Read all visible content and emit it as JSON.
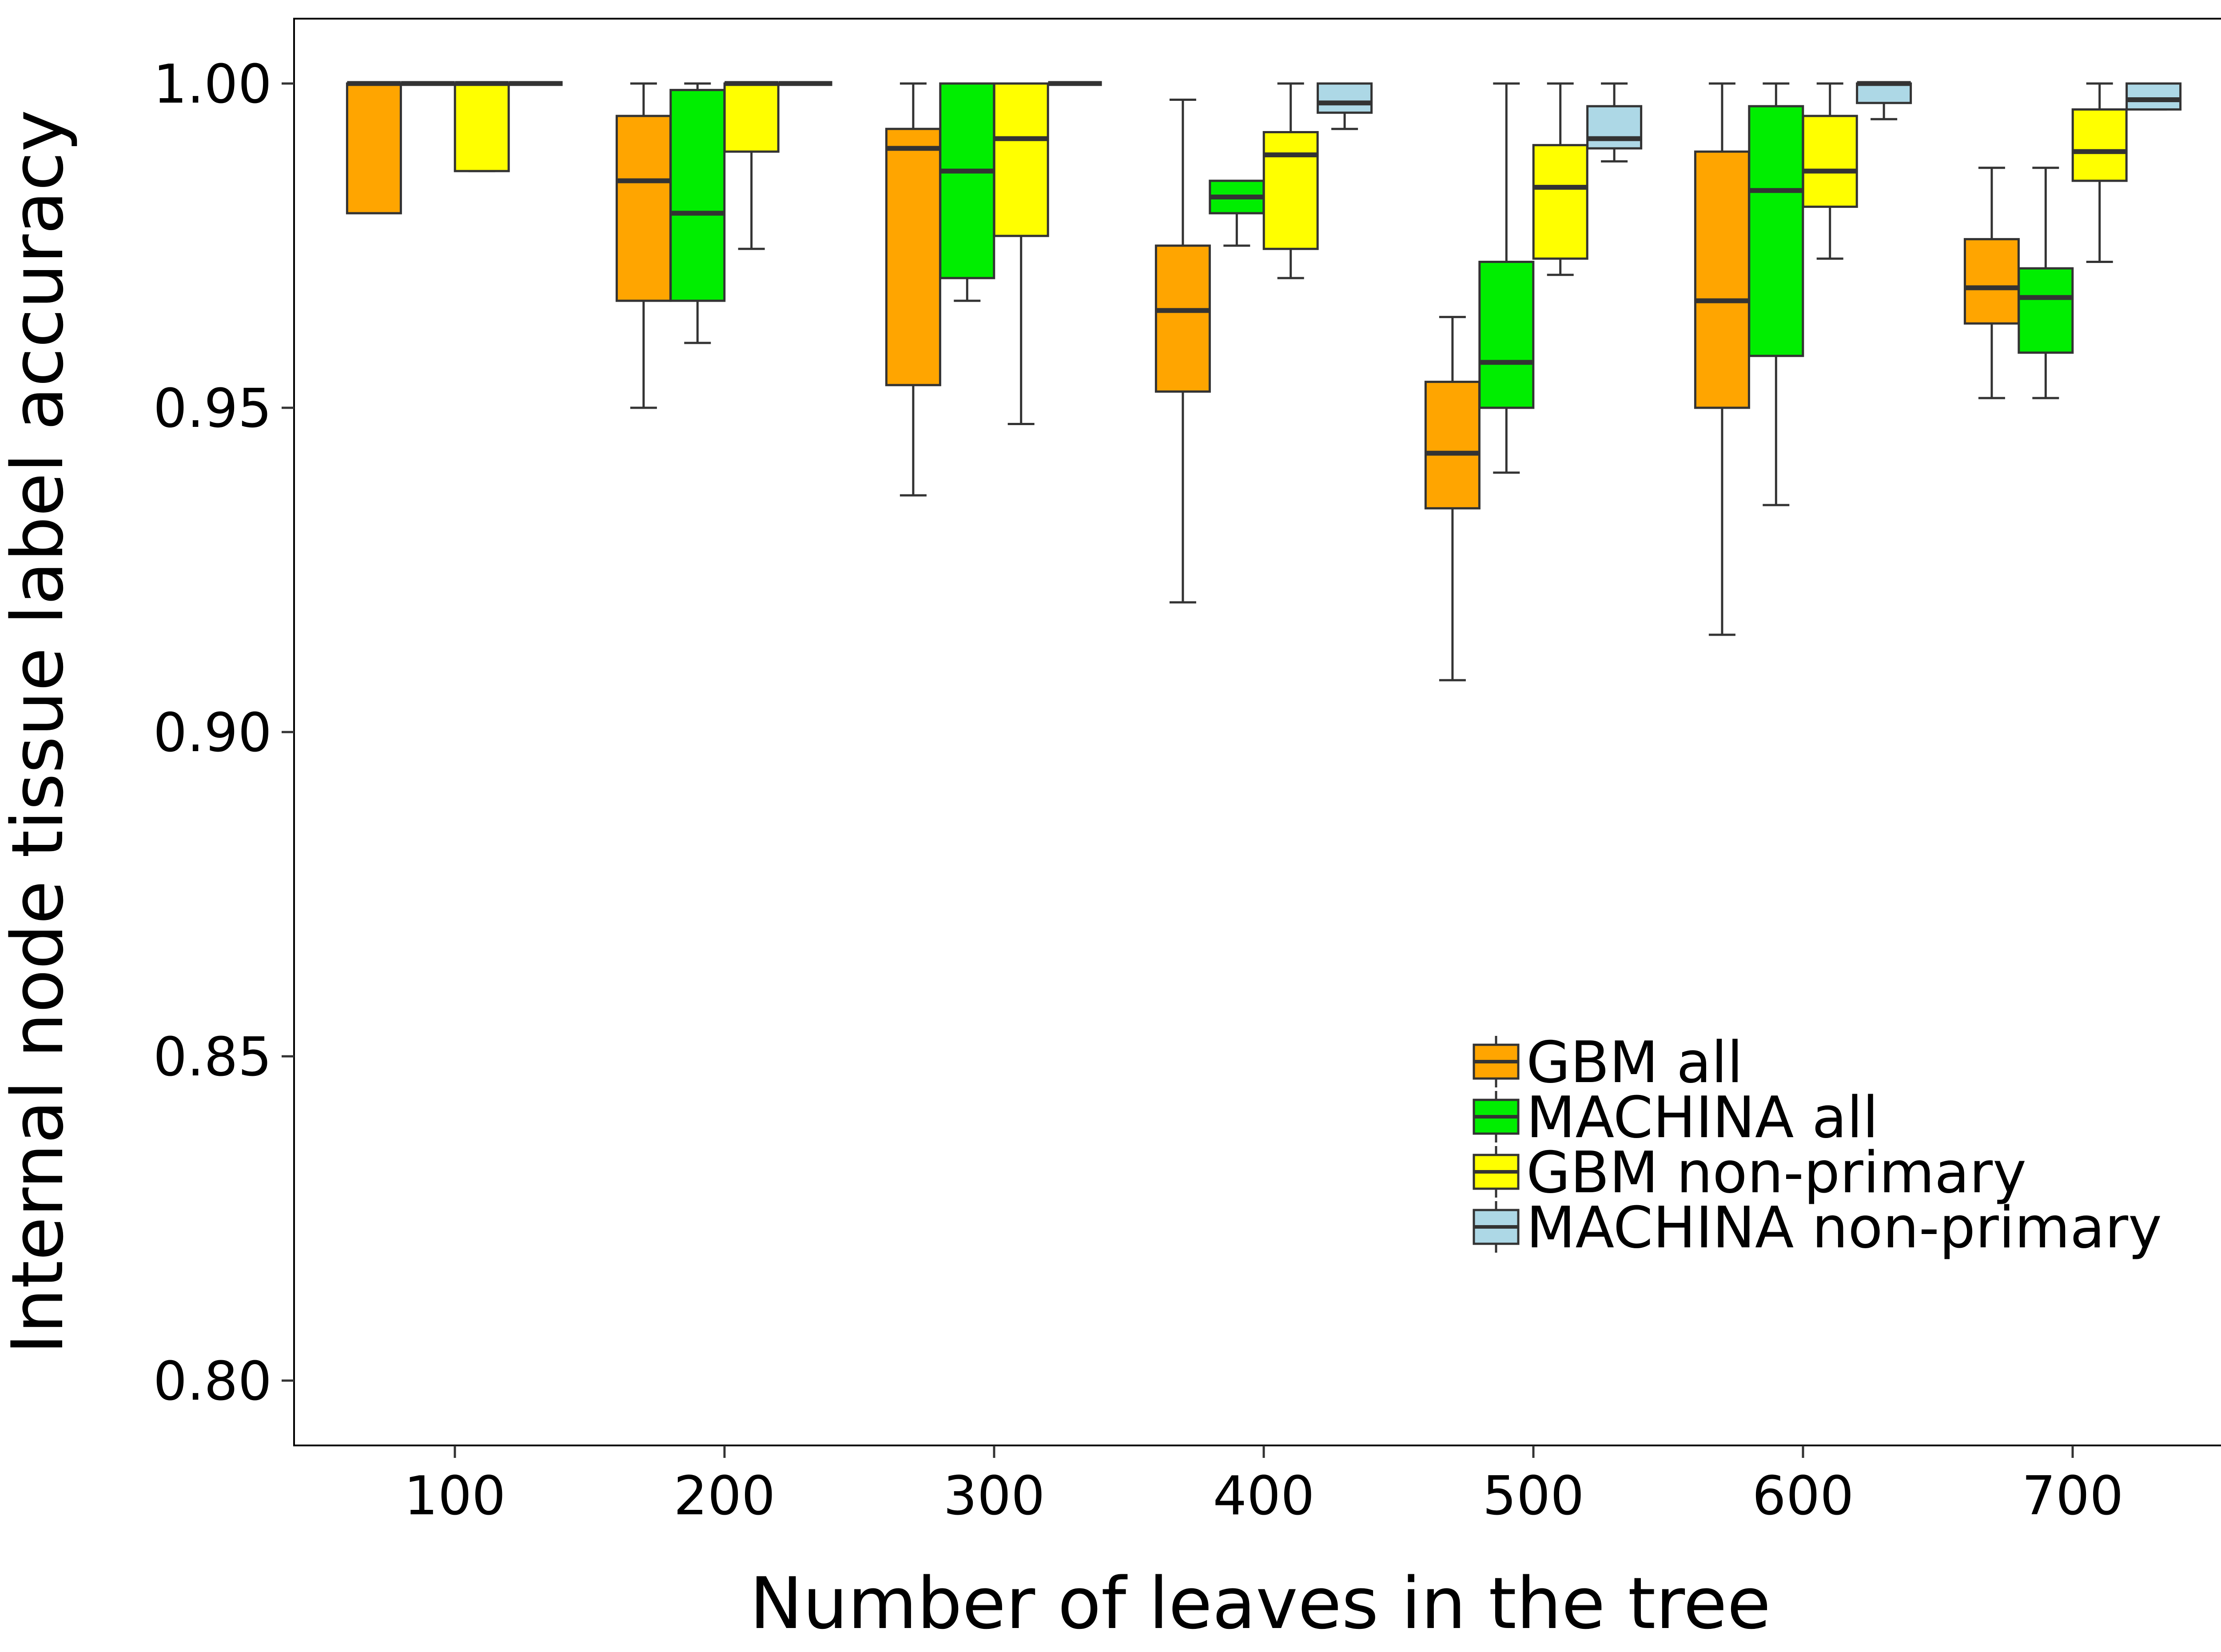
{
  "chart_data": {
    "type": "boxplot",
    "title": "",
    "xlabel": "Number of leaves in the tree",
    "ylabel": "Internal node tissue label accuracy",
    "ylim": [
      0.79,
      1.01
    ],
    "yticks": [
      0.8,
      0.85,
      0.9,
      0.95,
      1.0
    ],
    "ytick_labels": [
      "0.80",
      "0.85",
      "0.90",
      "0.95",
      "1.00"
    ],
    "categories": [
      "100",
      "200",
      "300",
      "400",
      "500",
      "600",
      "700"
    ],
    "grid": false,
    "legend_position": "bottom-right",
    "series": [
      {
        "name": "GBM all",
        "color": "#FFA500",
        "boxes": [
          {
            "whisker_low": 0.98,
            "q1": 0.98,
            "median": 1.0,
            "q3": 1.0,
            "whisker_high": 1.0
          },
          {
            "whisker_low": 0.95,
            "q1": 0.9665,
            "median": 0.985,
            "q3": 0.995,
            "whisker_high": 1.0
          },
          {
            "whisker_low": 0.9365,
            "q1": 0.9535,
            "median": 0.99,
            "q3": 0.993,
            "whisker_high": 1.0
          },
          {
            "whisker_low": 0.92,
            "q1": 0.9525,
            "median": 0.965,
            "q3": 0.975,
            "whisker_high": 0.9975
          },
          {
            "whisker_low": 0.908,
            "q1": 0.9345,
            "median": 0.943,
            "q3": 0.954,
            "whisker_high": 0.964
          },
          {
            "whisker_low": 0.915,
            "q1": 0.95,
            "median": 0.9665,
            "q3": 0.9895,
            "whisker_high": 1.0
          },
          {
            "whisker_low": 0.9515,
            "q1": 0.963,
            "median": 0.9685,
            "q3": 0.976,
            "whisker_high": 0.987
          }
        ]
      },
      {
        "name": "MACHINA all",
        "color": "#00EE00",
        "boxes": [
          {
            "whisker_low": 1.0,
            "q1": 1.0,
            "median": 1.0,
            "q3": 1.0,
            "whisker_high": 1.0
          },
          {
            "whisker_low": 0.96,
            "q1": 0.9665,
            "median": 0.98,
            "q3": 0.999,
            "whisker_high": 1.0
          },
          {
            "whisker_low": 0.9665,
            "q1": 0.97,
            "median": 0.9865,
            "q3": 1.0,
            "whisker_high": 1.0
          },
          {
            "whisker_low": 0.975,
            "q1": 0.98,
            "median": 0.9825,
            "q3": 0.985,
            "whisker_high": 0.985
          },
          {
            "whisker_low": 0.94,
            "q1": 0.95,
            "median": 0.957,
            "q3": 0.9725,
            "whisker_high": 1.0
          },
          {
            "whisker_low": 0.935,
            "q1": 0.958,
            "median": 0.9835,
            "q3": 0.9965,
            "whisker_high": 1.0
          },
          {
            "whisker_low": 0.9515,
            "q1": 0.9585,
            "median": 0.967,
            "q3": 0.9715,
            "whisker_high": 0.987
          }
        ]
      },
      {
        "name": "GBM non-primary",
        "color": "#FFFF00",
        "boxes": [
          {
            "whisker_low": 0.9865,
            "q1": 0.9865,
            "median": 1.0,
            "q3": 1.0,
            "whisker_high": 1.0
          },
          {
            "whisker_low": 0.9745,
            "q1": 0.9895,
            "median": 1.0,
            "q3": 1.0,
            "whisker_high": 1.0
          },
          {
            "whisker_low": 0.9475,
            "q1": 0.9765,
            "median": 0.9915,
            "q3": 1.0,
            "whisker_high": 1.0
          },
          {
            "whisker_low": 0.97,
            "q1": 0.9745,
            "median": 0.989,
            "q3": 0.9925,
            "whisker_high": 1.0
          },
          {
            "whisker_low": 0.9705,
            "q1": 0.973,
            "median": 0.984,
            "q3": 0.9905,
            "whisker_high": 1.0
          },
          {
            "whisker_low": 0.973,
            "q1": 0.981,
            "median": 0.9865,
            "q3": 0.995,
            "whisker_high": 1.0
          },
          {
            "whisker_low": 0.9725,
            "q1": 0.985,
            "median": 0.9895,
            "q3": 0.996,
            "whisker_high": 1.0
          }
        ]
      },
      {
        "name": "MACHINA non-primary",
        "color": "#ADD8E6",
        "boxes": [
          {
            "whisker_low": 1.0,
            "q1": 1.0,
            "median": 1.0,
            "q3": 1.0,
            "whisker_high": 1.0
          },
          {
            "whisker_low": 1.0,
            "q1": 1.0,
            "median": 1.0,
            "q3": 1.0,
            "whisker_high": 1.0
          },
          {
            "whisker_low": 1.0,
            "q1": 1.0,
            "median": 1.0,
            "q3": 1.0,
            "whisker_high": 1.0
          },
          {
            "whisker_low": 0.993,
            "q1": 0.9955,
            "median": 0.997,
            "q3": 1.0,
            "whisker_high": 1.0
          },
          {
            "whisker_low": 0.988,
            "q1": 0.99,
            "median": 0.9915,
            "q3": 0.9965,
            "whisker_high": 1.0
          },
          {
            "whisker_low": 0.9945,
            "q1": 0.997,
            "median": 1.0,
            "q3": 1.0,
            "whisker_high": 1.0
          },
          {
            "whisker_low": 0.996,
            "q1": 0.996,
            "median": 0.9975,
            "q3": 1.0,
            "whisker_high": 1.0
          }
        ]
      }
    ]
  }
}
